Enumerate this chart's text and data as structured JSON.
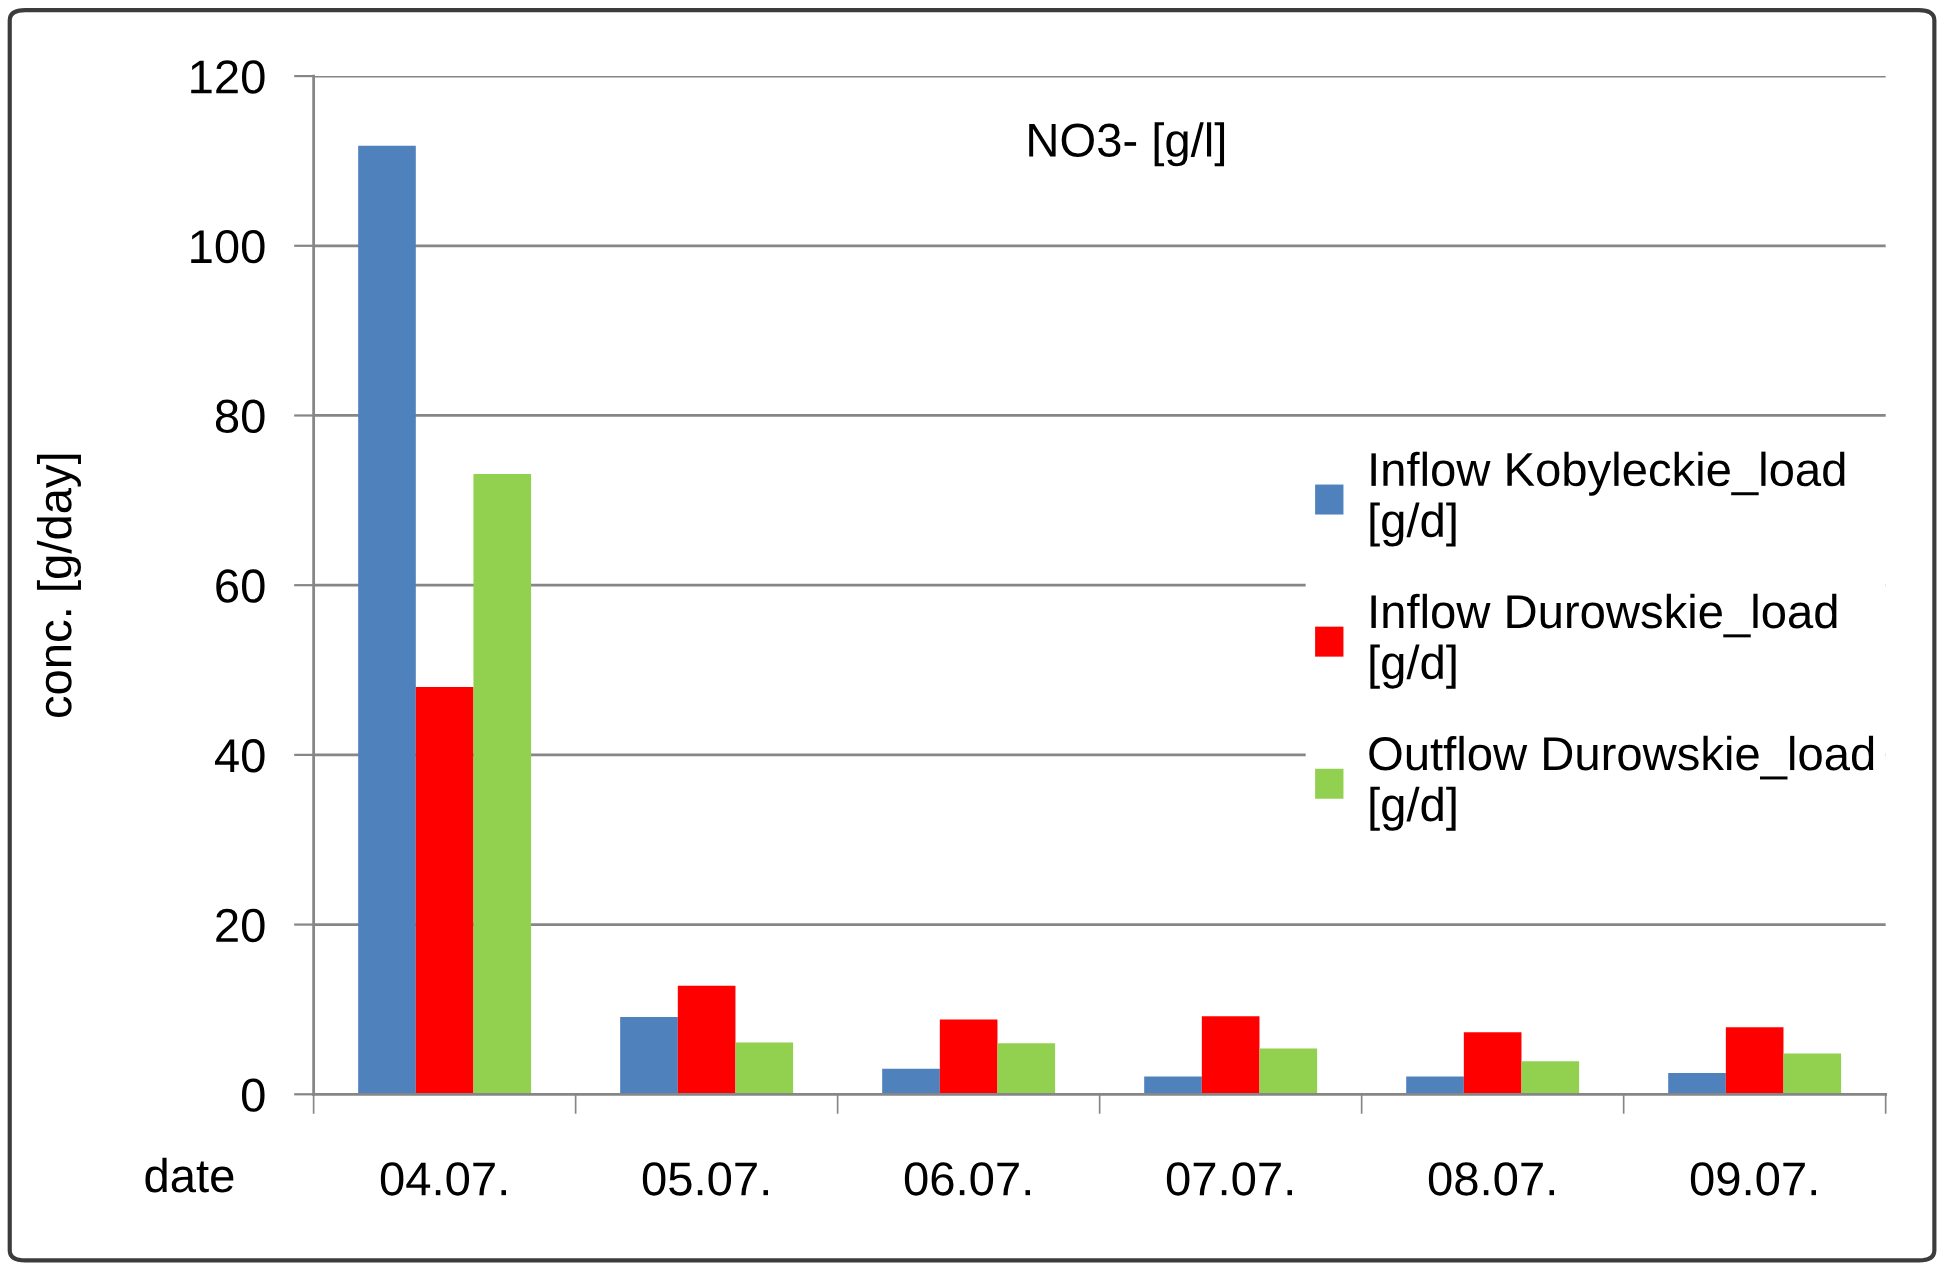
{
  "chart_data": {
    "type": "bar",
    "title": "NO3- [g/l]",
    "xlabel": "date",
    "ylabel": "conc. [g/day]",
    "categories": [
      "04.07.",
      "05.07.",
      "06.07.",
      "07.07.",
      "08.07.",
      "09.07."
    ],
    "series": [
      {
        "name": "Inflow Kobyleckie_load [g/d]",
        "color": "#4f81bd",
        "values": [
          111.8,
          9.1,
          3.0,
          2.1,
          2.1,
          2.5
        ]
      },
      {
        "name": "Inflow Durowskie_load [g/d]",
        "color": "#ff0000",
        "values": [
          48.0,
          12.8,
          8.8,
          9.2,
          7.3,
          7.9
        ]
      },
      {
        "name": "Outflow Durowskie_load [g/d]",
        "color": "#92d050",
        "values": [
          73.1,
          6.1,
          6.0,
          5.4,
          3.9,
          4.8
        ]
      }
    ],
    "ylim": [
      0,
      120
    ],
    "yticks": [
      0,
      20,
      40,
      60,
      80,
      100,
      120
    ],
    "grid": "y",
    "legend": "right"
  }
}
